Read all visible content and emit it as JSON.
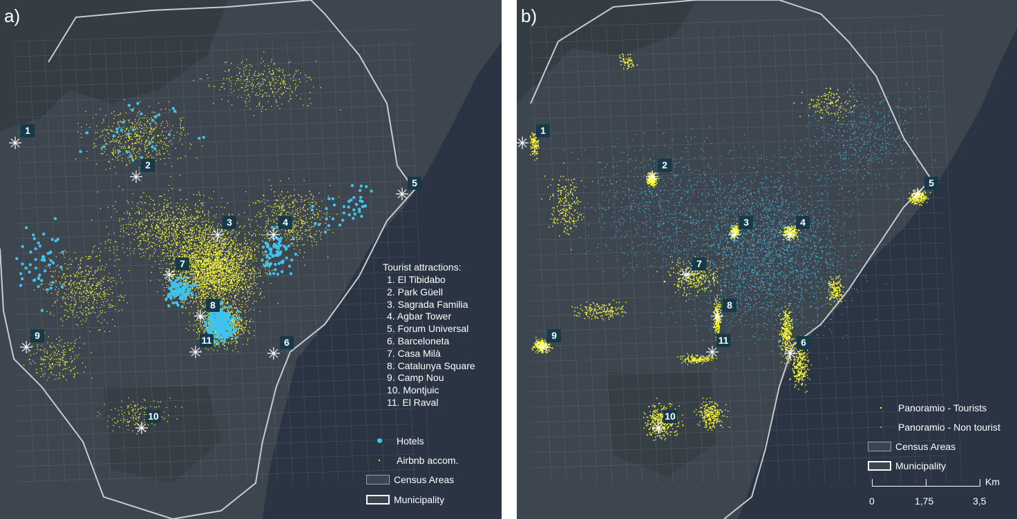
{
  "panels": {
    "a": {
      "letter": "a)"
    },
    "b": {
      "letter": "b)"
    }
  },
  "attractions": {
    "title": "Tourist attractions:",
    "items": [
      {
        "number": "1",
        "label": "1. El Tibidabo"
      },
      {
        "number": "2",
        "label": "2. Park Güell"
      },
      {
        "number": "3",
        "label": "3. Sagrada Familia"
      },
      {
        "number": "4",
        "label": "4. Agbar Tower"
      },
      {
        "number": "5",
        "label": "5. Forum Universal"
      },
      {
        "number": "6",
        "label": "6. Barceloneta"
      },
      {
        "number": "7",
        "label": "7. Casa Milà"
      },
      {
        "number": "8",
        "label": "8. Catalunya Square"
      },
      {
        "number": "9",
        "label": "9. Camp Nou"
      },
      {
        "number": "10",
        "label": "10. Montjuic"
      },
      {
        "number": "11",
        "label": "11. El Raval"
      }
    ]
  },
  "legend_a": {
    "hotels": "Hotels",
    "airbnb": "Airbnb accom.",
    "census": "Census Areas",
    "municipality": "Municipality"
  },
  "legend_b": {
    "tourists": "Panoramio - Tourists",
    "non_tourist": "Panoramio - Non tourist",
    "census": "Census Areas",
    "municipality": "Municipality"
  },
  "scalebar": {
    "unit": "Km",
    "labels": [
      "0",
      "1,75",
      "3,5"
    ]
  },
  "colors": {
    "ocean": "#2a3442",
    "land": "#3d454e",
    "airbnb": "#ffff33",
    "hotels": "#3fc3ef",
    "tourists": "#ffff33",
    "non_tourist": "#3fc3ef",
    "census": "#9aa3ad",
    "municipality": "#ffffff",
    "badge": "#163a4a"
  }
}
